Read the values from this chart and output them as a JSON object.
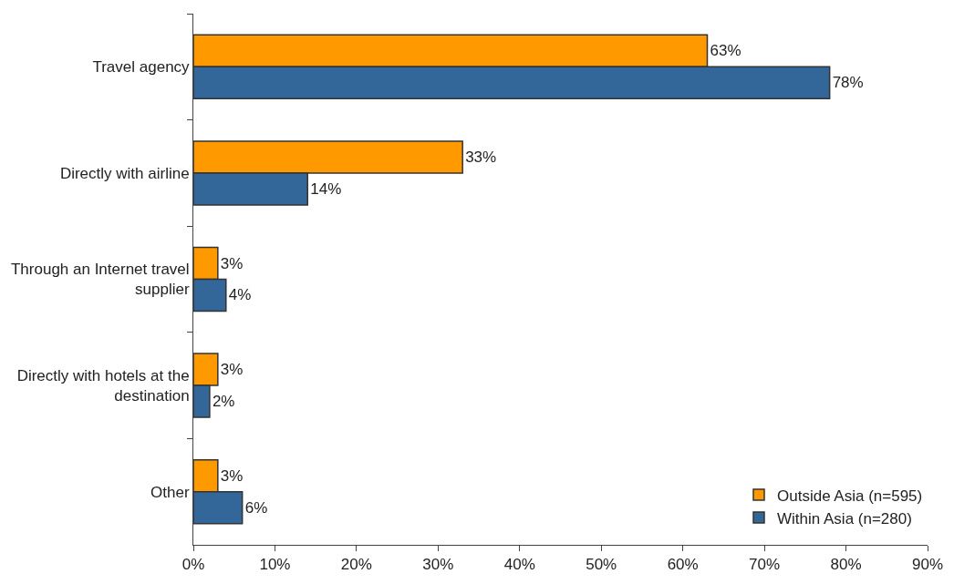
{
  "chart_data": {
    "type": "bar",
    "orientation": "horizontal",
    "categories": [
      "Travel agency",
      "Directly with airline",
      "Through an Internet travel supplier",
      "Directly with hotels at the destination",
      "Other"
    ],
    "series": [
      {
        "name": "Outside Asia (n=595)",
        "color": "#ff9900",
        "values": [
          63,
          33,
          3,
          3,
          3
        ],
        "value_labels": [
          "63%",
          "33%",
          "3%",
          "3%",
          "3%"
        ]
      },
      {
        "name": "Within Asia (n=280)",
        "color": "#336699",
        "values": [
          78,
          14,
          4,
          2,
          6
        ],
        "value_labels": [
          "78%",
          "14%",
          "4%",
          "2%",
          "6%"
        ]
      }
    ],
    "xlim": [
      0,
      90
    ],
    "xticks": [
      {
        "value": 0,
        "label": "0%"
      },
      {
        "value": 10,
        "label": "10%"
      },
      {
        "value": 20,
        "label": "20%"
      },
      {
        "value": 30,
        "label": "30%"
      },
      {
        "value": 40,
        "label": "40%"
      },
      {
        "value": 50,
        "label": "50%"
      },
      {
        "value": 60,
        "label": "60%"
      },
      {
        "value": 70,
        "label": "70%"
      },
      {
        "value": 80,
        "label": "80%"
      },
      {
        "value": 90,
        "label": "90%"
      }
    ],
    "legend": "bottom right"
  }
}
